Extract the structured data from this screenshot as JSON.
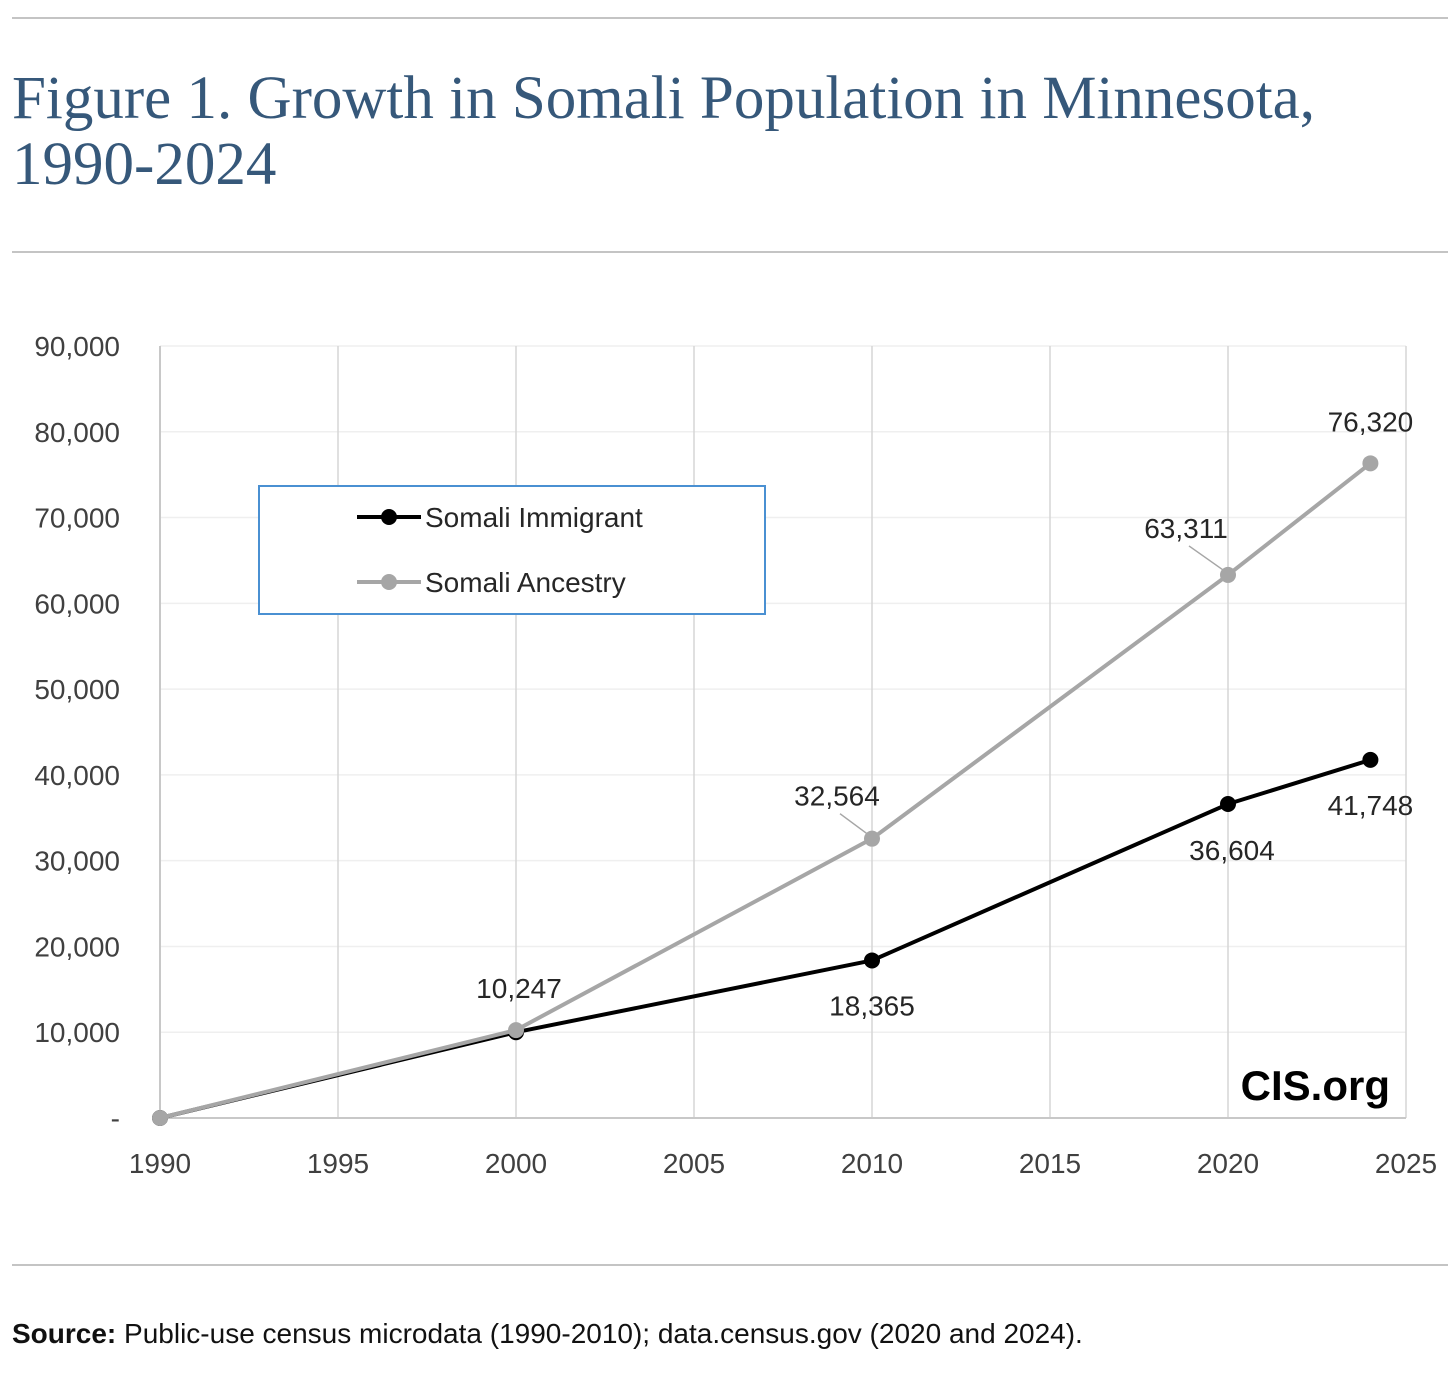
{
  "title": "Figure 1. Growth in Somali Population in Minnesota, 1990-2024",
  "source": {
    "label": "Source:",
    "text": " Public-use census microdata (1990-2010); data.census.gov (2020 and 2024)."
  },
  "watermark": "CIS.org",
  "chart_data": {
    "type": "line",
    "title": "Figure 1. Growth in Somali Population in Minnesota, 1990-2024",
    "xlabel": "",
    "ylabel": "",
    "xlim": [
      1990,
      2025
    ],
    "ylim": [
      0,
      90000
    ],
    "xticks": [
      1990,
      1995,
      2000,
      2005,
      2010,
      2015,
      2020,
      2025
    ],
    "yticks": [
      0,
      10000,
      20000,
      30000,
      40000,
      50000,
      60000,
      70000,
      80000,
      90000
    ],
    "ytick_labels": [
      "-",
      "10,000",
      "20,000",
      "30,000",
      "40,000",
      "50,000",
      "60,000",
      "70,000",
      "80,000",
      "90,000"
    ],
    "grid": true,
    "legend_position": "upper-left",
    "x": [
      1990,
      2000,
      2010,
      2020,
      2024
    ],
    "series": [
      {
        "name": "Somali Immigrant",
        "color": "#000000",
        "values": [
          0,
          10000,
          18365,
          36604,
          41748
        ],
        "labels": [
          null,
          null,
          "18,365",
          "36,604",
          "41,748"
        ]
      },
      {
        "name": "Somali Ancestry",
        "color": "#a6a6a6",
        "values": [
          0,
          10247,
          32564,
          63311,
          76320
        ],
        "labels": [
          null,
          "10,247",
          "32,564",
          "63,311",
          "76,320"
        ]
      }
    ]
  }
}
